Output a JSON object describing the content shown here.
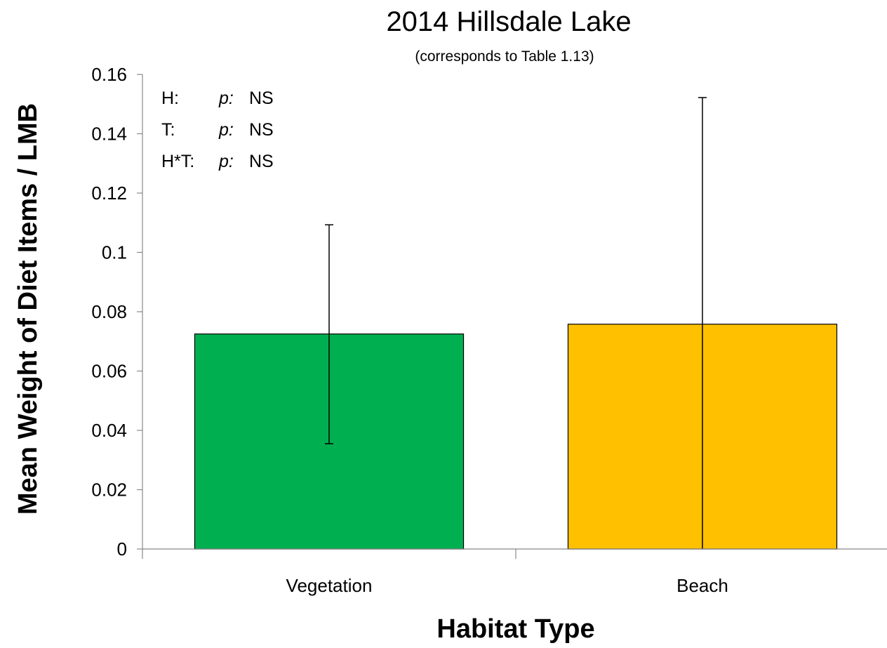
{
  "chart_data": {
    "type": "bar",
    "title": "2014 Hillsdale Lake",
    "subtitle": "(corresponds to Table 1.13)",
    "xlabel": "Habitat Type",
    "ylabel": "Mean Weight of Diet Items / LMB",
    "categories": [
      "Vegetation",
      "Beach"
    ],
    "values": [
      0.0725,
      0.0758
    ],
    "error_low": [
      0.0355,
      0.0
    ],
    "error_high": [
      0.1093,
      0.1522
    ],
    "colors": [
      "#00b050",
      "#ffc000"
    ],
    "ylim": [
      0,
      0.16
    ],
    "yticks": [
      "0",
      "0.02",
      "0.04",
      "0.06",
      "0.08",
      "0.1",
      "0.12",
      "0.14",
      "0.16"
    ],
    "grid": false,
    "annotations": [
      {
        "label": "H:",
        "p": "p:",
        "value": "NS"
      },
      {
        "label": "T:",
        "p": "p:",
        "value": "NS"
      },
      {
        "label": "H*T:",
        "p": "p:",
        "value": "NS"
      }
    ]
  }
}
